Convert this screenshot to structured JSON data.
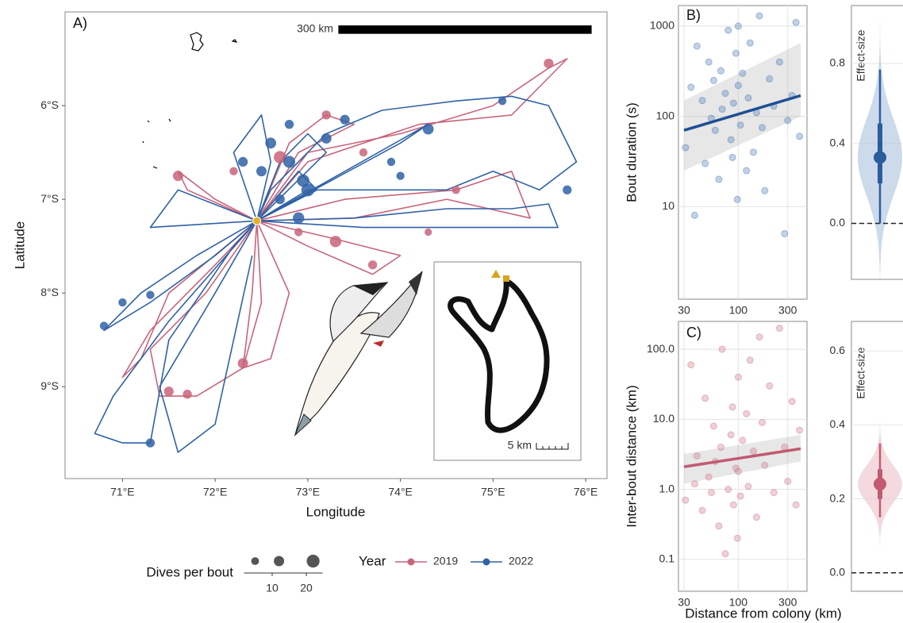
{
  "chart_data": [
    {
      "type": "map",
      "label": "A)",
      "xlabel": "Longitude",
      "ylabel": "Latitude",
      "xlim": [
        70.38,
        76.23
      ],
      "ylim": [
        -9.98,
        -5.0
      ],
      "xticks": [
        {
          "value": 71,
          "label": "71°E"
        },
        {
          "value": 72,
          "label": "72°E"
        },
        {
          "value": 73,
          "label": "73°E"
        },
        {
          "value": 74,
          "label": "74°E"
        },
        {
          "value": 75,
          "label": "75°E"
        },
        {
          "value": 76,
          "label": "76°E"
        }
      ],
      "yticks": [
        {
          "value": -6,
          "label": "6°S"
        },
        {
          "value": -7,
          "label": "7°S"
        },
        {
          "value": -8,
          "label": "8°S"
        },
        {
          "value": -9,
          "label": "9°S"
        }
      ],
      "scale_bar_label": "300 km",
      "inset_scale_label": "5 km",
      "colony": {
        "x": 72.45,
        "y": -7.23
      },
      "legend_title": "Year",
      "size_legend": {
        "title": "Dives per bout",
        "sizes": [
          5,
          12,
          22
        ],
        "ticks": [
          10,
          20
        ]
      },
      "series": [
        {
          "name": "2019",
          "color": "#c9647a",
          "tracks": [
            {
              "x": [
                72.45,
                73.0,
                74.0,
                75.0,
                75.6,
                75.8,
                75.5,
                75.2,
                74.2,
                73.0,
                72.45
              ],
              "y": [
                -7.23,
                -6.5,
                -6.3,
                -6.0,
                -5.6,
                -5.5,
                -5.8,
                -6.1,
                -6.2,
                -6.6,
                -7.23
              ]
            },
            {
              "x": [
                72.45,
                73.4,
                74.6,
                75.2,
                75.4,
                74.5,
                73.5,
                72.45
              ],
              "y": [
                -7.23,
                -7.0,
                -6.9,
                -6.7,
                -7.2,
                -7.0,
                -7.2,
                -7.23
              ]
            },
            {
              "x": [
                72.45,
                73.2,
                74.0,
                73.7,
                73.0,
                72.45
              ],
              "y": [
                -7.23,
                -7.4,
                -7.6,
                -7.8,
                -7.5,
                -7.23
              ]
            },
            {
              "x": [
                72.45,
                72.4,
                72.3,
                71.8,
                71.4,
                71.3,
                71.9,
                72.45
              ],
              "y": [
                -7.23,
                -8.0,
                -8.8,
                -9.1,
                -9.1,
                -8.6,
                -8.0,
                -7.23
              ]
            },
            {
              "x": [
                72.45,
                71.5,
                71.2,
                71.0,
                71.3,
                72.0,
                72.45
              ],
              "y": [
                -7.23,
                -8.0,
                -8.7,
                -8.9,
                -8.4,
                -7.7,
                -7.23
              ]
            },
            {
              "x": [
                72.45,
                71.7,
                71.6,
                72.0,
                72.45
              ],
              "y": [
                -7.23,
                -6.9,
                -6.7,
                -7.0,
                -7.23
              ]
            },
            {
              "x": [
                72.45,
                72.8,
                73.2,
                73.5,
                72.9,
                72.45
              ],
              "y": [
                -7.23,
                -6.4,
                -6.1,
                -6.2,
                -6.5,
                -7.23
              ]
            },
            {
              "x": [
                72.45,
                72.8,
                72.6,
                72.3,
                72.5,
                72.45
              ],
              "y": [
                -7.23,
                -8.0,
                -8.7,
                -8.8,
                -8.1,
                -7.23
              ]
            }
          ],
          "bouts": {
            "x": [
              72.7,
              73.2,
              73.6,
              75.6,
              74.6,
              73.7,
              73.3,
              72.3,
              71.7,
              71.5,
              72.2,
              71.6,
              72.9,
              74.3
            ],
            "y": [
              -6.55,
              -6.1,
              -6.5,
              -5.55,
              -6.9,
              -7.7,
              -7.45,
              -8.75,
              -9.08,
              -9.05,
              -6.7,
              -6.75,
              -7.35,
              -7.35
            ],
            "size": [
              20,
              8,
              6,
              10,
              6,
              8,
              16,
              12,
              8,
              10,
              6,
              12,
              6,
              4
            ]
          }
        },
        {
          "name": "2022",
          "color": "#2f62a6",
          "tracks": [
            {
              "x": [
                72.45,
                71.8,
                71.2,
                70.9,
                70.8,
                71.3,
                72.0,
                72.45
              ],
              "y": [
                -7.23,
                -7.6,
                -8.0,
                -8.3,
                -8.4,
                -8.1,
                -7.6,
                -7.23
              ]
            },
            {
              "x": [
                72.45,
                71.5,
                70.9,
                70.7,
                71.0,
                71.3,
                71.5,
                72.2,
                72.45
              ],
              "y": [
                -7.23,
                -8.3,
                -9.1,
                -9.5,
                -9.6,
                -9.6,
                -8.5,
                -7.5,
                -7.23
              ]
            },
            {
              "x": [
                72.45,
                72.0,
                71.4,
                71.6,
                72.0,
                72.4
              ],
              "y": [
                -7.23,
                -8.0,
                -9.0,
                -9.7,
                -9.4,
                -7.6
              ]
            },
            {
              "x": [
                72.45,
                73.0,
                73.7,
                74.5,
                75.0,
                75.5,
                75.9,
                75.6,
                75.2,
                74.6,
                73.8,
                73.2,
                72.6,
                72.45
              ],
              "y": [
                -7.23,
                -6.9,
                -6.9,
                -6.9,
                -6.7,
                -6.9,
                -6.6,
                -6.0,
                -5.9,
                -5.95,
                -6.05,
                -6.3,
                -6.9,
                -7.23
              ]
            },
            {
              "x": [
                72.45,
                73.5,
                74.5,
                75.2,
                75.6,
                75.7,
                74.8,
                73.6,
                72.45
              ],
              "y": [
                -7.23,
                -7.2,
                -7.1,
                -7.1,
                -7.05,
                -7.3,
                -7.3,
                -7.3,
                -7.23
              ]
            },
            {
              "x": [
                72.45,
                72.7,
                73.0,
                73.2,
                72.45
              ],
              "y": [
                -7.23,
                -6.6,
                -6.3,
                -6.5,
                -7.23
              ]
            },
            {
              "x": [
                72.45,
                73.1,
                72.9,
                72.45
              ],
              "y": [
                -7.23,
                -6.9,
                -6.7,
                -7.23
              ]
            },
            {
              "x": [
                72.45,
                72.2,
                72.5,
                72.6,
                72.45
              ],
              "y": [
                -7.23,
                -6.5,
                -6.1,
                -6.6,
                -7.23
              ]
            },
            {
              "x": [
                72.45,
                74.3,
                74.0,
                72.45
              ],
              "y": [
                -7.23,
                -6.2,
                -6.4,
                -7.23
              ]
            },
            {
              "x": [
                72.45,
                71.6,
                71.3,
                72.45
              ],
              "y": [
                -7.23,
                -6.9,
                -7.3,
                -7.23
              ]
            }
          ],
          "bouts": {
            "x": [
              72.6,
              72.8,
              73.0,
              73.2,
              72.9,
              72.7,
              72.5,
              72.8,
              74.3,
              73.9,
              75.1,
              75.8,
              71.0,
              70.8,
              71.3,
              71.3,
              72.3,
              72.95,
              73.4,
              74.0
            ],
            "y": [
              -6.4,
              -6.6,
              -6.9,
              -6.35,
              -7.2,
              -7.0,
              -6.7,
              -6.2,
              -6.25,
              -6.6,
              -5.95,
              -6.9,
              -8.1,
              -8.35,
              -9.6,
              -8.02,
              -6.6,
              -6.8,
              -6.15,
              -6.75
            ],
            "size": [
              14,
              18,
              22,
              12,
              16,
              10,
              12,
              8,
              14,
              6,
              6,
              8,
              6,
              6,
              8,
              6,
              10,
              20,
              10,
              6
            ]
          }
        }
      ]
    },
    {
      "type": "scatter",
      "label": "B)",
      "ylabel": "Bout duration (s)",
      "color": "#4f7fb8",
      "fit_color": "#1f4f95",
      "log_x": true,
      "log_y": true,
      "grid": true,
      "xlim": [
        26.5,
        460
      ],
      "ylim": [
        0.94,
        1690
      ],
      "xticks": [
        30,
        100,
        300
      ],
      "yticks": [
        10,
        100,
        1000
      ],
      "x": [
        31,
        35,
        38,
        40,
        45,
        48,
        52,
        55,
        58,
        60,
        65,
        68,
        70,
        75,
        80,
        85,
        88,
        90,
        95,
        98,
        100,
        100,
        105,
        110,
        120,
        125,
        130,
        140,
        150,
        160,
        170,
        180,
        200,
        220,
        250,
        280,
        300,
        330,
        360,
        390
      ],
      "y": [
        45,
        210,
        8,
        600,
        150,
        30,
        400,
        95,
        250,
        70,
        20,
        320,
        120,
        180,
        900,
        55,
        35,
        140,
        500,
        12,
        1000,
        220,
        80,
        300,
        25,
        160,
        650,
        40,
        110,
        1300,
        75,
        15,
        260,
        130,
        400,
        5,
        90,
        170,
        1100,
        60
      ],
      "fit": {
        "x": [
          30,
          400
        ],
        "y": [
          70,
          170
        ],
        "lower": [
          25,
          100
        ],
        "upper": [
          150,
          650
        ]
      }
    },
    {
      "type": "effect",
      "ylabel": "Effect-size",
      "color": "#2b5c9e",
      "fill": "#b7cbe3",
      "ylim": [
        -0.28,
        1.09
      ],
      "yticks": [
        {
          "value": 0,
          "label": "0.0"
        },
        {
          "value": 0.4,
          "label": "0.4"
        },
        {
          "value": 0.8,
          "label": "0.8"
        }
      ],
      "reference": 0,
      "estimate": 0.33,
      "inner": [
        0.2,
        0.5
      ],
      "outer": [
        0.0,
        0.77
      ]
    },
    {
      "type": "scatter",
      "label": "C)",
      "ylabel": "Inter-bout distance (km)",
      "xlabel": "Distance from colony (km)",
      "color": "#cf7b8c",
      "fit_color": "#c25a70",
      "log_x": true,
      "log_y": true,
      "grid": true,
      "xlim": [
        26.5,
        460
      ],
      "ylim": [
        0.035,
        250
      ],
      "xticks": [
        30,
        100,
        300
      ],
      "yticks": [
        0.1,
        {
          "value": 1,
          "label": "1.0"
        },
        {
          "value": 10,
          "label": "10.0"
        },
        {
          "value": 100,
          "label": "100.0"
        }
      ],
      "x": [
        31,
        35,
        38,
        40,
        45,
        48,
        52,
        55,
        58,
        60,
        65,
        68,
        70,
        75,
        80,
        85,
        88,
        90,
        95,
        98,
        100,
        100,
        105,
        110,
        120,
        125,
        130,
        140,
        150,
        160,
        170,
        180,
        200,
        220,
        250,
        280,
        300,
        330,
        360,
        390
      ],
      "y": [
        0.7,
        60,
        1.2,
        3,
        0.5,
        20,
        1.5,
        0.9,
        8,
        2.5,
        0.3,
        4,
        100,
        0.12,
        1.0,
        6,
        15,
        0.6,
        2,
        0.2,
        1.8,
        40,
        0.8,
        5,
        12,
        1.1,
        70,
        3.5,
        0.4,
        150,
        9,
        2.2,
        30,
        0.9,
        200,
        4,
        1.3,
        18,
        0.6,
        7
      ],
      "fit": {
        "x": [
          30,
          400
        ],
        "y": [
          2.1,
          3.8
        ],
        "lower": [
          1.2,
          2.5
        ],
        "upper": [
          3.2,
          6
        ]
      }
    },
    {
      "type": "effect",
      "ylabel": "Effect-size",
      "color": "#c25a70",
      "fill": "#f0c9d1",
      "ylim": [
        -0.05,
        0.68
      ],
      "yticks": [
        {
          "value": 0,
          "label": "0.0"
        },
        {
          "value": 0.2,
          "label": "0.2"
        },
        {
          "value": 0.4,
          "label": "0.4"
        },
        {
          "value": 0.6,
          "label": "0.6"
        }
      ],
      "reference": 0,
      "estimate": 0.24,
      "inner": [
        0.2,
        0.28
      ],
      "outer": [
        0.15,
        0.35
      ]
    }
  ]
}
